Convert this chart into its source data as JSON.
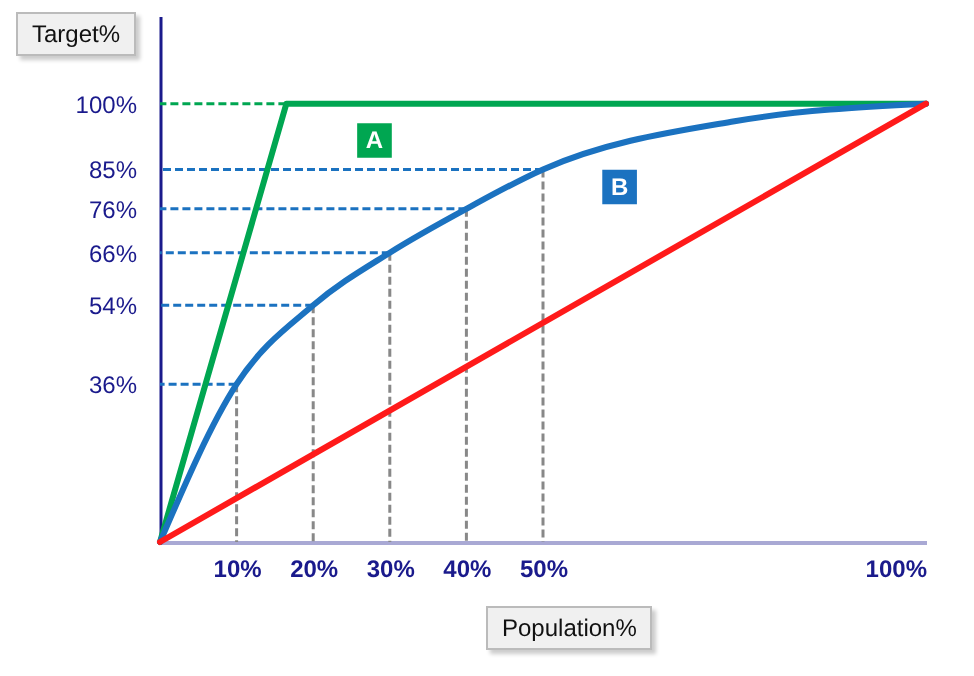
{
  "chart_data": {
    "type": "line",
    "xlabel": "Population%",
    "ylabel": "Target%",
    "xlim": [
      0,
      100
    ],
    "ylim": [
      0,
      120
    ],
    "xticks": [
      {
        "value": 10,
        "label": "10%"
      },
      {
        "value": 20,
        "label": "20%"
      },
      {
        "value": 30,
        "label": "30%"
      },
      {
        "value": 40,
        "label": "40%"
      },
      {
        "value": 50,
        "label": "50%"
      },
      {
        "value": 100,
        "label": "100%"
      }
    ],
    "yticks": [
      {
        "value": 36,
        "label": "36%"
      },
      {
        "value": 54,
        "label": "54%"
      },
      {
        "value": 66,
        "label": "66%"
      },
      {
        "value": 76,
        "label": "76%"
      },
      {
        "value": 85,
        "label": "85%"
      },
      {
        "value": 100,
        "label": "100%"
      }
    ],
    "series": [
      {
        "name": "A",
        "color": "#00a651",
        "x": [
          0,
          16.5,
          100
        ],
        "values": [
          0,
          100,
          100
        ]
      },
      {
        "name": "B",
        "color": "#1b72c0",
        "x": [
          0,
          10,
          20,
          30,
          40,
          50,
          75,
          100
        ],
        "values": [
          0,
          36,
          54,
          66,
          76,
          85,
          96,
          100
        ]
      },
      {
        "color": "#ff1a1a",
        "x": [
          0,
          100
        ],
        "values": [
          0,
          100
        ]
      },
      {
        "color": "#00a651",
        "line_style": "dashed",
        "x": [
          16.5,
          0
        ],
        "values": [
          100,
          100
        ]
      },
      {
        "color": "#1b72c0",
        "line_style": "dashed",
        "x": [
          10,
          0
        ],
        "values": [
          36,
          36
        ]
      },
      {
        "color": "#1b72c0",
        "line_style": "dashed",
        "x": [
          20,
          0
        ],
        "values": [
          54,
          54
        ]
      },
      {
        "color": "#1b72c0",
        "line_style": "dashed",
        "x": [
          30,
          0
        ],
        "values": [
          66,
          66
        ]
      },
      {
        "color": "#1b72c0",
        "line_style": "dashed",
        "x": [
          40,
          0
        ],
        "values": [
          76,
          76
        ]
      },
      {
        "color": "#1b72c0",
        "line_style": "dashed",
        "x": [
          50,
          0
        ],
        "values": [
          85,
          85
        ]
      },
      {
        "color": "#888888",
        "line_style": "dashed",
        "x": [
          10,
          10
        ],
        "values": [
          36,
          0
        ]
      },
      {
        "color": "#888888",
        "line_style": "dashed",
        "x": [
          20,
          20
        ],
        "values": [
          54,
          0
        ]
      },
      {
        "color": "#888888",
        "line_style": "dashed",
        "x": [
          30,
          30
        ],
        "values": [
          66,
          0
        ]
      },
      {
        "color": "#888888",
        "line_style": "dashed",
        "x": [
          40,
          40
        ],
        "values": [
          76,
          0
        ]
      },
      {
        "color": "#888888",
        "line_style": "dashed",
        "x": [
          50,
          50
        ],
        "values": [
          85,
          0
        ]
      }
    ],
    "marker": "none",
    "line_style": "solid"
  }
}
